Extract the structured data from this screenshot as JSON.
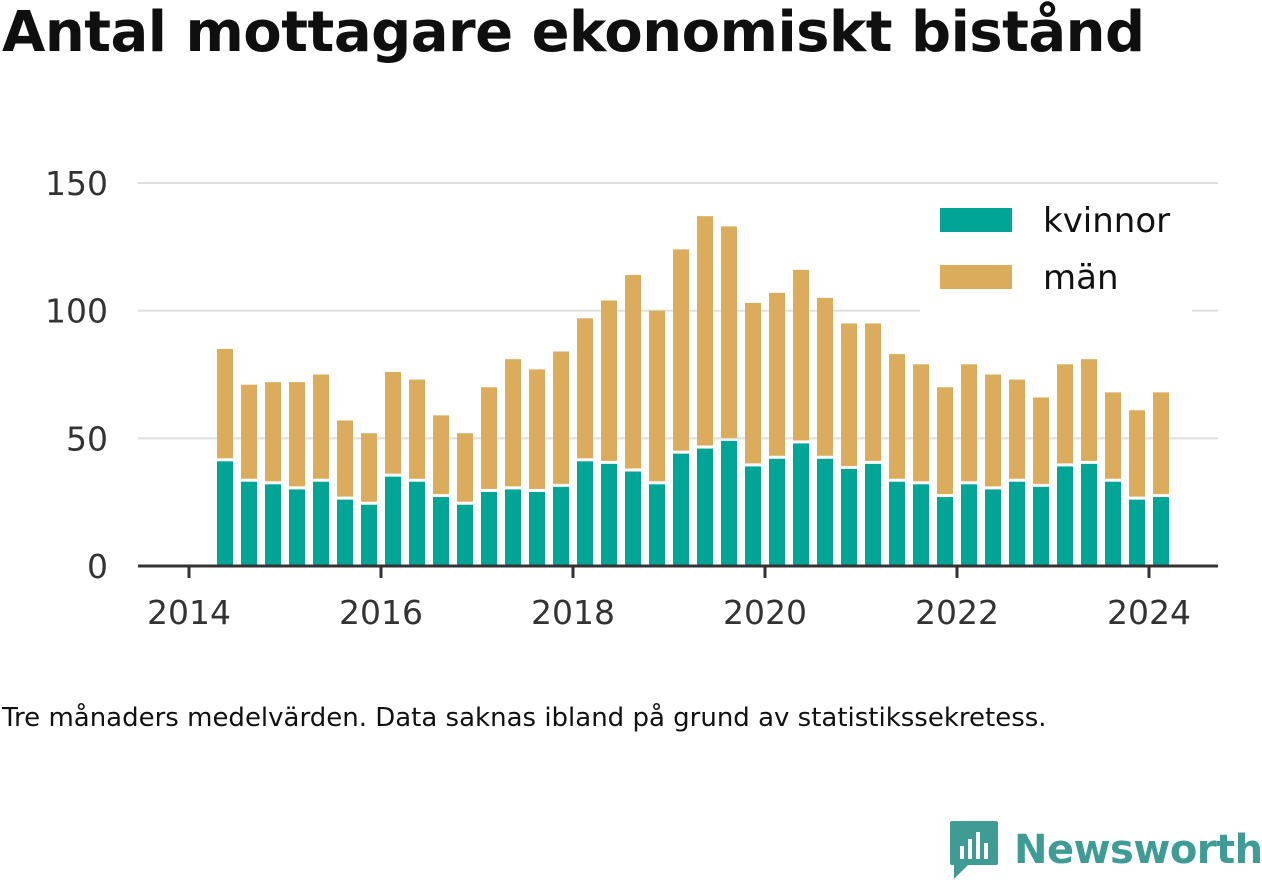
{
  "title": "Antal mottagare ekonomiskt bistånd",
  "caption": "Tre månaders medelvärden. Data saknas ibland på grund av statistikssekretess.",
  "brand": {
    "name": "Newsworthy",
    "icon": "newsworthy-logo-icon",
    "color": "#3f9c95"
  },
  "chart_data": {
    "type": "bar",
    "stacked": true,
    "x": [
      2014.375,
      2014.625,
      2014.875,
      2015.125,
      2015.375,
      2015.625,
      2015.875,
      2016.125,
      2016.375,
      2016.625,
      2016.875,
      2017.125,
      2017.375,
      2017.625,
      2017.875,
      2018.125,
      2018.375,
      2018.625,
      2018.875,
      2019.125,
      2019.375,
      2019.625,
      2019.875,
      2020.125,
      2020.375,
      2020.625,
      2020.875,
      2021.125,
      2021.375,
      2021.625,
      2021.875,
      2022.125,
      2022.375,
      2022.625,
      2022.875,
      2023.125,
      2023.375,
      2023.625,
      2023.875,
      2024.125
    ],
    "series": [
      {
        "name": "kvinnor",
        "color": "#00a595",
        "values": [
          41,
          33,
          32,
          30,
          33,
          26,
          24,
          35,
          33,
          27,
          24,
          29,
          30,
          29,
          31,
          41,
          40,
          37,
          32,
          44,
          46,
          49,
          39,
          42,
          48,
          42,
          38,
          40,
          33,
          32,
          27,
          32,
          30,
          33,
          31,
          39,
          40,
          33,
          26,
          27
        ]
      },
      {
        "name": "män",
        "color": "#dbac5b",
        "values": [
          44,
          38,
          40,
          42,
          42,
          31,
          28,
          41,
          40,
          32,
          28,
          41,
          51,
          48,
          53,
          56,
          64,
          77,
          68,
          80,
          91,
          84,
          64,
          65,
          68,
          63,
          57,
          55,
          50,
          47,
          43,
          47,
          45,
          40,
          35,
          40,
          41,
          35,
          35,
          41
        ]
      }
    ],
    "x_ticks": [
      "2014",
      "2016",
      "2018",
      "2020",
      "2022",
      "2024"
    ],
    "y_ticks": [
      "0",
      "50",
      "100",
      "150"
    ],
    "xlim": [
      2014,
      2024.5
    ],
    "ylim": [
      0,
      150
    ],
    "grid": "horizontal",
    "legend_position": "top-right"
  }
}
